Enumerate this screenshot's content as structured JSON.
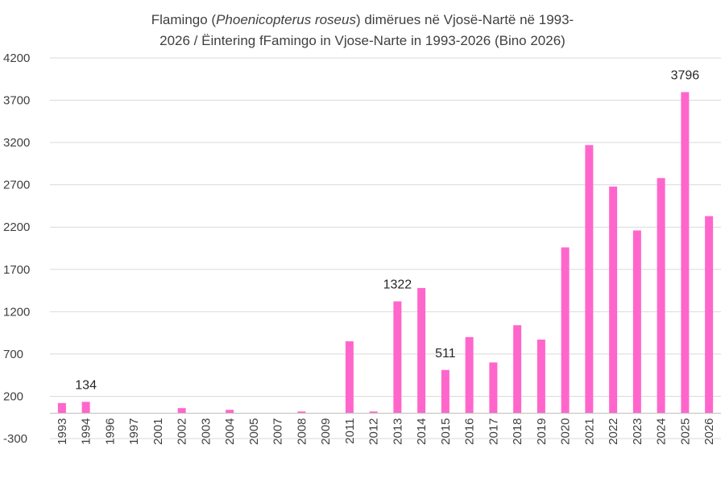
{
  "title": {
    "line1_a": "Flamingo (",
    "line1_sci": "Phoenicopterus roseus",
    "line1_b": ") dimërues në Vjosë-Nartë në 1993-",
    "line2": "2026 / Ëintering fFamingo in Vjose-Narte in 1993-2026 (Bino 2026)"
  },
  "colors": {
    "bar": "#ff66cc",
    "grid": "#d9d9d9",
    "axis": "#bfbfbf",
    "text": "#404040"
  },
  "chart_data": {
    "type": "bar",
    "title": "Flamingo (Phoenicopterus roseus) dimërues në Vjosë-Nartë në 1993-2026 / Ëintering fFamingo in Vjose-Narte in 1993-2026 (Bino 2026)",
    "categories": [
      "1993",
      "1994",
      "1996",
      "1997",
      "2001",
      "2002",
      "2003",
      "2004",
      "2005",
      "2007",
      "2008",
      "2009",
      "2011",
      "2012",
      "2013",
      "2014",
      "2015",
      "2016",
      "2017",
      "2018",
      "2019",
      "2020",
      "2021",
      "2022",
      "2023",
      "2024",
      "2025",
      "2026"
    ],
    "values": [
      120,
      134,
      0,
      0,
      0,
      60,
      0,
      40,
      0,
      0,
      20,
      0,
      850,
      20,
      1322,
      1480,
      511,
      900,
      600,
      1040,
      870,
      1960,
      3170,
      2680,
      2160,
      2780,
      3796,
      2330
    ],
    "data_labels": [
      {
        "category": "1994",
        "text": "134"
      },
      {
        "category": "2013",
        "text": "1322"
      },
      {
        "category": "2015",
        "text": "511"
      },
      {
        "category": "2025",
        "text": "3796"
      }
    ],
    "y_ticks": [
      "-300",
      "200",
      "700",
      "1200",
      "1700",
      "2200",
      "2700",
      "3200",
      "3700",
      "4200"
    ],
    "ylim": [
      -300,
      4200
    ],
    "xlabel": "",
    "ylabel": "",
    "grid": true,
    "legend": "none"
  }
}
